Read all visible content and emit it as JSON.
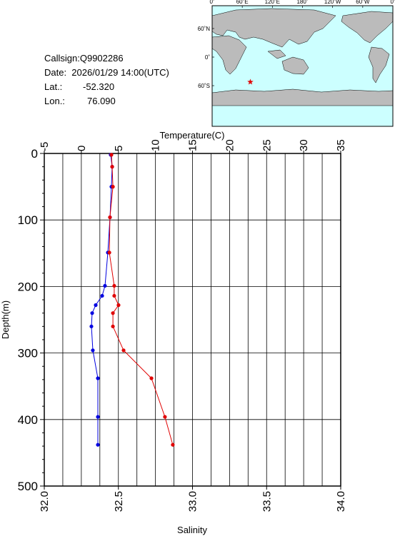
{
  "chart_data": {
    "type": "profile",
    "info": {
      "callsign": "Callsign:Q9902286",
      "date": "Date:  2026/01/29 14:00(UTC)",
      "lat_label": "Lat.:",
      "lat": {
        "value": -52.32,
        "label": "-52.320"
      },
      "lon_label": "Lon.:",
      "lon": {
        "value": 76.09,
        "label": "76.090"
      }
    },
    "map": {
      "lon_ticks": [
        {
          "value": 0,
          "label": "0˚"
        },
        {
          "value": 60,
          "label": "60˚E"
        },
        {
          "value": 120,
          "label": "120˚E"
        },
        {
          "value": 180,
          "label": "180˚"
        },
        {
          "value": 240,
          "label": "120˚W"
        },
        {
          "value": 300,
          "label": "60˚W"
        },
        {
          "value": 360,
          "label": "0˚"
        }
      ],
      "lat_ticks": [
        {
          "value": 60,
          "label": "60˚N"
        },
        {
          "value": 0,
          "label": "0˚"
        },
        {
          "value": -60,
          "label": "60˚S"
        }
      ],
      "marker_color": "#e00000"
    },
    "xlabel": "Temperature(C)",
    "x2label": "Salinity",
    "ylabel": "Depth(m)",
    "xlim": [
      -5,
      35
    ],
    "xticks": [
      -5,
      0,
      5,
      10,
      15,
      20,
      25,
      30,
      35
    ],
    "x_gridlines": [
      -2.5,
      0,
      2.5,
      5,
      7.5,
      10,
      12.5,
      15,
      17.5,
      20,
      22.5,
      25,
      27.5,
      30,
      32.5
    ],
    "x2lim": [
      32.0,
      34.0
    ],
    "x2ticks": [
      {
        "value": 32.0,
        "label": "32.0"
      },
      {
        "value": 32.5,
        "label": "32.5"
      },
      {
        "value": 33.0,
        "label": "33.0"
      },
      {
        "value": 33.5,
        "label": "33.5"
      },
      {
        "value": 34.0,
        "label": "34.0"
      }
    ],
    "ylim": [
      0,
      500
    ],
    "yticks": [
      0,
      100,
      200,
      300,
      400,
      500
    ],
    "y_minor_ticks": [
      20,
      40,
      60,
      80,
      120,
      140,
      160,
      180,
      220,
      240,
      260,
      280,
      320,
      340,
      360,
      380,
      420,
      440,
      460,
      480
    ],
    "depth": [
      2,
      20,
      50,
      96,
      149,
      199,
      214,
      228,
      240,
      260,
      296,
      338,
      396,
      438
    ],
    "series": [
      {
        "name": "Temperature",
        "color": "#0000e0",
        "axis": "x",
        "values": [
          3.96,
          4.16,
          4.06,
          3.87,
          3.58,
          3.19,
          2.81,
          1.94,
          1.46,
          1.36,
          1.55,
          2.23,
          2.23,
          2.23
        ]
      },
      {
        "name": "Salinity",
        "color": "#e00000",
        "axis": "x2",
        "values": [
          32.453,
          32.458,
          32.463,
          32.443,
          32.439,
          32.472,
          32.472,
          32.501,
          32.463,
          32.463,
          32.535,
          32.723,
          32.814,
          32.867
        ]
      }
    ]
  }
}
